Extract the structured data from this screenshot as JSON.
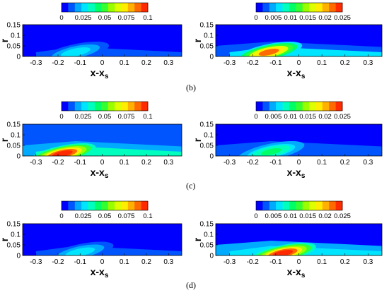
{
  "figure": {
    "row_labels": [
      "(b)",
      "(c)",
      "(d)"
    ],
    "colormap": [
      "#0000ff",
      "#0055ff",
      "#00aaff",
      "#00e5ff",
      "#00ffbf",
      "#00ff66",
      "#33ff33",
      "#99ff00",
      "#ddff00",
      "#ffee00",
      "#ffb000",
      "#ff6a00",
      "#ff2a00"
    ]
  },
  "chart_data": [
    {
      "type": "heatmap",
      "panel": "b-left",
      "xlabel": "x-x",
      "xlabel_sub": "s",
      "ylabel": "r",
      "xlim": [
        -0.36,
        0.36
      ],
      "ylim": [
        0,
        0.15
      ],
      "xticks": [
        "-0.3",
        "-0.2",
        "-0.1",
        "0",
        "0.1",
        "0.2",
        "0.3"
      ],
      "yticks": [
        "0",
        "0.05",
        "0.1",
        "0.15"
      ],
      "colorbar": {
        "range": [
          0,
          0.1
        ],
        "ticks": [
          "0",
          "0.025",
          "0.05",
          "0.075",
          "0.1"
        ]
      },
      "peak": {
        "x": -0.12,
        "r": 0.02,
        "value": 0.03
      },
      "background": 0.003
    },
    {
      "type": "heatmap",
      "panel": "b-right",
      "xlabel": "x-x",
      "xlabel_sub": "s",
      "ylabel": "r",
      "xlim": [
        -0.36,
        0.36
      ],
      "ylim": [
        0,
        0.15
      ],
      "xticks": [
        "-0.3",
        "-0.2",
        "-0.1",
        "0",
        "0.1",
        "0.2",
        "0.3"
      ],
      "yticks": [
        "0",
        "0.05",
        "0.1",
        "0.15"
      ],
      "colorbar": {
        "range": [
          0,
          0.025
        ],
        "ticks": [
          "0",
          "0.005",
          "0.01",
          "0.015",
          "0.02",
          "0.025"
        ]
      },
      "peak": {
        "x": -0.13,
        "r": 0.02,
        "value": 0.022
      },
      "background": 0.001
    },
    {
      "type": "heatmap",
      "panel": "c-left",
      "xlabel": "x-x",
      "xlabel_sub": "s",
      "ylabel": "r",
      "xlim": [
        -0.36,
        0.36
      ],
      "ylim": [
        0,
        0.15
      ],
      "xticks": [
        "-0.3",
        "-0.2",
        "-0.1",
        "0",
        "0.1",
        "0.2",
        "0.3"
      ],
      "yticks": [
        "0",
        "0.05",
        "0.1",
        "0.15"
      ],
      "colorbar": {
        "range": [
          0,
          0.1
        ],
        "ticks": [
          "0",
          "0.025",
          "0.05",
          "0.075",
          "0.1"
        ]
      },
      "peak": {
        "x": -0.18,
        "r": 0.01,
        "value": 0.1
      },
      "background": 0.008
    },
    {
      "type": "heatmap",
      "panel": "c-right",
      "xlabel": "x-x",
      "xlabel_sub": "s",
      "ylabel": "r",
      "xlim": [
        -0.36,
        0.36
      ],
      "ylim": [
        0,
        0.15
      ],
      "xticks": [
        "-0.3",
        "-0.2",
        "-0.1",
        "0",
        "0.1",
        "0.2",
        "0.3"
      ],
      "yticks": [
        "0",
        "0.05",
        "0.1",
        "0.15"
      ],
      "colorbar": {
        "range": [
          0,
          0.025
        ],
        "ticks": [
          "0",
          "0.005",
          "0.01",
          "0.015",
          "0.02",
          "0.025"
        ]
      },
      "peak": {
        "x": -0.12,
        "r": 0.02,
        "value": 0.011
      },
      "background": 0.001
    },
    {
      "type": "heatmap",
      "panel": "d-left",
      "xlabel": "x-x",
      "xlabel_sub": "s",
      "ylabel": "r",
      "xlim": [
        -0.36,
        0.36
      ],
      "ylim": [
        0,
        0.15
      ],
      "xticks": [
        "-0.3",
        "-0.2",
        "-0.1",
        "0",
        "0.1",
        "0.2",
        "0.3"
      ],
      "yticks": [
        "0",
        "0.05",
        "0.1",
        "0.15"
      ],
      "colorbar": {
        "range": [
          0,
          0.1
        ],
        "ticks": [
          "0",
          "0.025",
          "0.05",
          "0.075",
          "0.1"
        ]
      },
      "peak": {
        "x": -0.1,
        "r": 0.015,
        "value": 0.03
      },
      "background": 0.003
    },
    {
      "type": "heatmap",
      "panel": "d-right",
      "xlabel": "x-x",
      "xlabel_sub": "s",
      "ylabel": "r",
      "xlim": [
        -0.36,
        0.36
      ],
      "ylim": [
        0,
        0.15
      ],
      "xticks": [
        "-0.3",
        "-0.2",
        "-0.1",
        "0",
        "0.1",
        "0.2",
        "0.3"
      ],
      "yticks": [
        "0",
        "0.05",
        "0.1",
        "0.15"
      ],
      "colorbar": {
        "range": [
          0,
          0.025
        ],
        "ticks": [
          "0",
          "0.005",
          "0.01",
          "0.015",
          "0.02",
          "0.025"
        ]
      },
      "peak": {
        "x": -0.07,
        "r": 0.01,
        "value": 0.025
      },
      "background": 0.001
    }
  ]
}
